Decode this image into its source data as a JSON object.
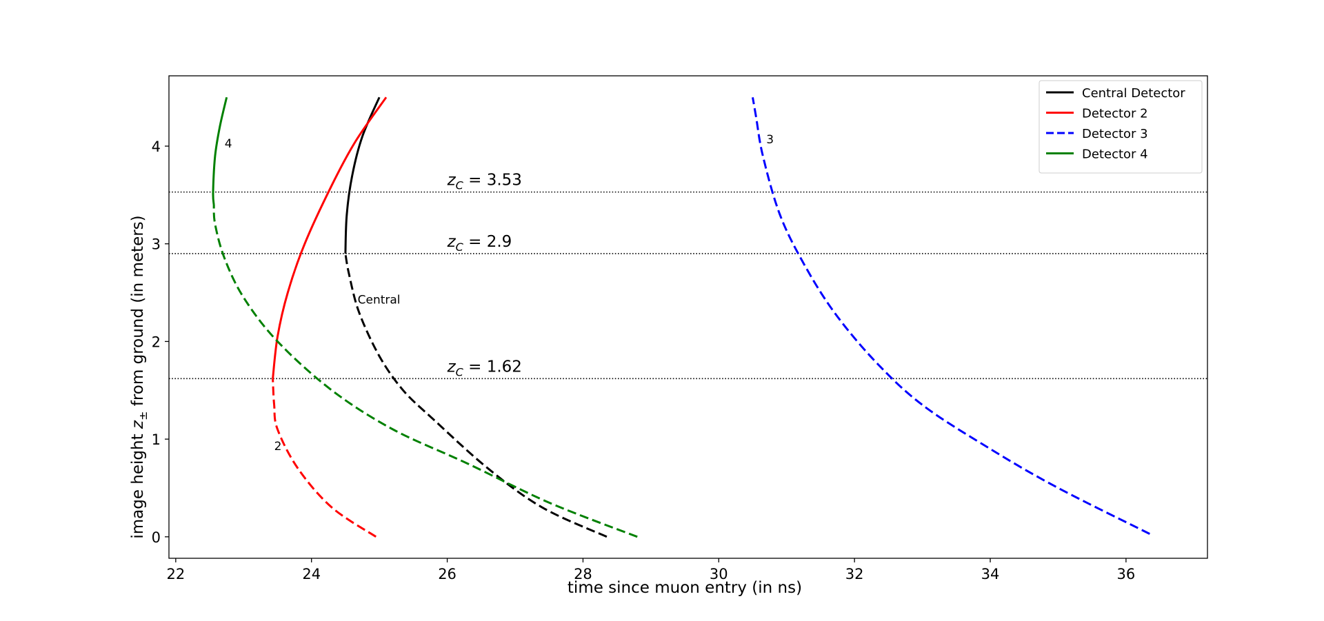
{
  "chart_data": {
    "type": "line",
    "xlabel": "time since muon entry (in ns)",
    "ylabel_main": "image height ",
    "ylabel_var": "z",
    "ylabel_sub": "±",
    "ylabel_tail": " from ground (in meters)",
    "xlim": [
      21.9,
      37.2
    ],
    "ylim": [
      -0.22,
      4.72
    ],
    "xticks": [
      22,
      24,
      26,
      28,
      30,
      32,
      34,
      36
    ],
    "yticks": [
      0,
      1,
      2,
      3,
      4
    ],
    "grid": false,
    "legend_placement": "top-right",
    "hlines": [
      {
        "y": 3.53,
        "label_var": "z",
        "label_sub": "C",
        "label_text": " = 3.53",
        "label_x": 26.0
      },
      {
        "y": 2.9,
        "label_var": "z",
        "label_sub": "C",
        "label_text": " = 2.9",
        "label_x": 26.0
      },
      {
        "y": 1.62,
        "label_var": "z",
        "label_sub": "C",
        "label_text": " = 1.62",
        "label_x": 26.0
      }
    ],
    "series": [
      {
        "name": "Central Detector",
        "color": "#000000",
        "legend_style": "solid",
        "solid_above_y": 2.9,
        "points": [
          [
            28.35,
            0.0
          ],
          [
            27.4,
            0.3
          ],
          [
            26.6,
            0.7
          ],
          [
            25.8,
            1.2
          ],
          [
            25.35,
            1.5
          ],
          [
            25.0,
            1.85
          ],
          [
            24.7,
            2.3
          ],
          [
            24.55,
            2.7
          ],
          [
            24.5,
            2.9
          ],
          [
            24.52,
            3.3
          ],
          [
            24.6,
            3.7
          ],
          [
            24.75,
            4.1
          ],
          [
            25.0,
            4.5
          ]
        ],
        "annotation": {
          "text": "Central",
          "x": 24.68,
          "y": 2.43
        }
      },
      {
        "name": "Detector 2",
        "color": "#ff0000",
        "legend_style": "solid",
        "solid_above_y": 1.62,
        "points": [
          [
            24.95,
            0.0
          ],
          [
            24.3,
            0.3
          ],
          [
            23.8,
            0.7
          ],
          [
            23.5,
            1.1
          ],
          [
            23.45,
            1.35
          ],
          [
            23.43,
            1.62
          ],
          [
            23.5,
            2.05
          ],
          [
            23.65,
            2.5
          ],
          [
            23.9,
            3.0
          ],
          [
            24.3,
            3.6
          ],
          [
            24.65,
            4.05
          ],
          [
            25.1,
            4.5
          ]
        ],
        "annotation": {
          "text": "2",
          "x": 23.45,
          "y": 0.93
        }
      },
      {
        "name": "Detector 3",
        "color": "#0000ff",
        "legend_style": "dashed",
        "solid_above_y": 99,
        "points": [
          [
            36.35,
            0.03
          ],
          [
            35.0,
            0.5
          ],
          [
            34.0,
            0.9
          ],
          [
            33.0,
            1.35
          ],
          [
            32.3,
            1.8
          ],
          [
            31.7,
            2.3
          ],
          [
            31.25,
            2.8
          ],
          [
            30.9,
            3.3
          ],
          [
            30.65,
            3.9
          ],
          [
            30.55,
            4.3
          ],
          [
            30.5,
            4.5
          ]
        ],
        "annotation": {
          "text": "3",
          "x": 30.7,
          "y": 4.07
        }
      },
      {
        "name": "Detector 4",
        "color": "#008000",
        "legend_style": "solid",
        "solid_above_y": 3.4,
        "points": [
          [
            28.8,
            0.0
          ],
          [
            27.5,
            0.35
          ],
          [
            26.3,
            0.75
          ],
          [
            25.2,
            1.1
          ],
          [
            24.3,
            1.5
          ],
          [
            23.5,
            2.0
          ],
          [
            23.0,
            2.45
          ],
          [
            22.72,
            2.85
          ],
          [
            22.58,
            3.2
          ],
          [
            22.55,
            3.53
          ],
          [
            22.58,
            3.9
          ],
          [
            22.65,
            4.2
          ],
          [
            22.75,
            4.5
          ]
        ],
        "annotation": {
          "text": "4",
          "x": 22.72,
          "y": 4.03
        }
      }
    ]
  }
}
